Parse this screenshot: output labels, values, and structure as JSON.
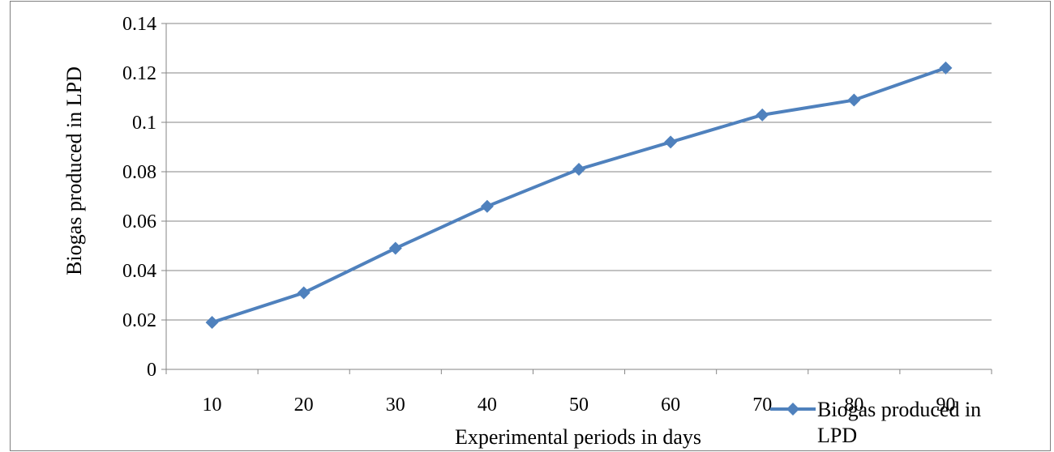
{
  "chart_data": {
    "type": "line",
    "x": [
      10,
      20,
      30,
      40,
      50,
      60,
      70,
      80,
      90
    ],
    "series": [
      {
        "name": "Biogas produced in LPD",
        "values": [
          0.019,
          0.031,
          0.049,
          0.066,
          0.081,
          0.092,
          0.103,
          0.109,
          0.122
        ],
        "color": "#4f81bd",
        "marker": "diamond"
      }
    ],
    "title": "",
    "xlabel": "Experimental periods in days",
    "ylabel": "Biogas produced in LPD",
    "ylim": [
      0,
      0.14
    ],
    "yticks": [
      "0",
      "0.02",
      "0.04",
      "0.06",
      "0.08",
      "0.1",
      "0.12",
      "0.14"
    ],
    "xticks": [
      "10",
      "20",
      "30",
      "40",
      "50",
      "60",
      "70",
      "80",
      "90"
    ],
    "grid": "horizontal",
    "legend": {
      "position": "bottom-right",
      "lines": [
        "Biogas produced in",
        "LPD"
      ]
    }
  }
}
